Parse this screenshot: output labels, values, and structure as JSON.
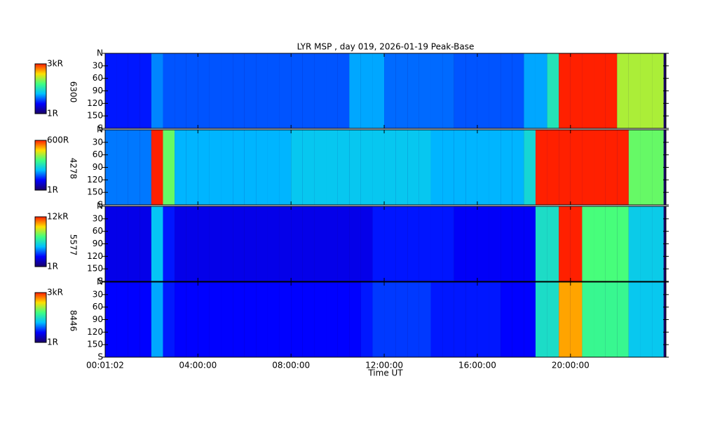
{
  "chart_data": [
    {
      "type": "heatmap",
      "title": "LYR MSP , day 019, 2026-01-19 Peak-Base",
      "channel": "6300",
      "clim": [
        1,
        3000
      ],
      "clim_labels": [
        "1R",
        "3kR"
      ],
      "log_scale": true,
      "xlim": [
        0.017,
        24.1
      ],
      "xticks": [
        {
          "value": 0.017,
          "label": "00:01:02"
        },
        {
          "value": 4,
          "label": "04:00:00"
        },
        {
          "value": 8,
          "label": "08:00:00"
        },
        {
          "value": 12,
          "label": "12:00:00"
        },
        {
          "value": 16,
          "label": "16:00:00"
        },
        {
          "value": 20,
          "label": "20:00:00"
        }
      ],
      "ylim": [
        0,
        180
      ],
      "yticks": [
        {
          "value": 0,
          "label": "N"
        },
        30,
        60,
        90,
        120,
        150,
        {
          "value": 180,
          "label": "S"
        }
      ],
      "x": [
        0.25,
        0.75,
        1.25,
        1.75,
        2.25,
        2.75,
        3.25,
        3.75,
        4.25,
        4.75,
        5.25,
        5.75,
        6.25,
        6.75,
        7.25,
        7.75,
        8.25,
        8.75,
        9.25,
        9.75,
        10.25,
        10.75,
        11.25,
        11.75,
        12.25,
        12.75,
        13.25,
        13.75,
        14.25,
        14.75,
        15.25,
        15.75,
        16.25,
        16.75,
        17.25,
        17.75,
        18.25,
        18.75,
        19.25,
        19.75,
        20.25,
        20.75,
        21.25,
        21.75,
        22.25,
        22.75,
        23.25,
        23.75
      ],
      "values": [
        6,
        6,
        6,
        6,
        15,
        10,
        10,
        10,
        10,
        10,
        10,
        10,
        10,
        10,
        10,
        10,
        10,
        10,
        10,
        10,
        10,
        20,
        20,
        20,
        12,
        12,
        12,
        12,
        12,
        12,
        10,
        10,
        10,
        10,
        10,
        10,
        20,
        20,
        60,
        3000,
        3000,
        3000,
        3000,
        3000,
        300,
        300,
        300,
        300
      ]
    },
    {
      "type": "heatmap",
      "channel": "4278",
      "clim": [
        1,
        600
      ],
      "clim_labels": [
        "1R",
        "600R"
      ],
      "log_scale": true,
      "xlim": [
        0.017,
        24.1
      ],
      "xticks": [
        {
          "value": 0.017,
          "label": "00:01:02"
        },
        {
          "value": 4,
          "label": "04:00:00"
        },
        {
          "value": 8,
          "label": "08:00:00"
        },
        {
          "value": 12,
          "label": "12:00:00"
        },
        {
          "value": 16,
          "label": "16:00:00"
        },
        {
          "value": 20,
          "label": "20:00:00"
        }
      ],
      "ylim": [
        0,
        180
      ],
      "yticks": [
        {
          "value": 0,
          "label": "N"
        },
        30,
        60,
        90,
        120,
        150,
        {
          "value": 180,
          "label": "S"
        }
      ],
      "x": [
        0.25,
        0.75,
        1.25,
        1.75,
        2.25,
        2.75,
        3.25,
        3.75,
        4.25,
        4.75,
        5.25,
        5.75,
        6.25,
        6.75,
        7.25,
        7.75,
        8.25,
        8.75,
        9.25,
        9.75,
        10.25,
        10.75,
        11.25,
        11.75,
        12.25,
        12.75,
        13.25,
        13.75,
        14.25,
        14.75,
        15.25,
        15.75,
        16.25,
        16.75,
        17.25,
        17.75,
        18.25,
        18.75,
        19.25,
        19.75,
        20.25,
        20.75,
        21.25,
        21.75,
        22.25,
        22.75,
        23.25,
        23.75
      ],
      "values": [
        8,
        8,
        8,
        8,
        600,
        60,
        12,
        12,
        12,
        12,
        12,
        12,
        12,
        12,
        12,
        12,
        15,
        15,
        15,
        15,
        15,
        15,
        15,
        15,
        15,
        15,
        15,
        15,
        12,
        12,
        12,
        12,
        12,
        12,
        12,
        12,
        20,
        600,
        600,
        600,
        600,
        600,
        600,
        600,
        600,
        60,
        60,
        60
      ]
    },
    {
      "type": "heatmap",
      "channel": "5577",
      "clim": [
        1,
        12000
      ],
      "clim_labels": [
        "1R",
        "12kR"
      ],
      "log_scale": true,
      "xlim": [
        0.017,
        24.1
      ],
      "xticks": [
        {
          "value": 0.017,
          "label": "00:01:02"
        },
        {
          "value": 4,
          "label": "04:00:00"
        },
        {
          "value": 8,
          "label": "08:00:00"
        },
        {
          "value": 12,
          "label": "12:00:00"
        },
        {
          "value": 16,
          "label": "16:00:00"
        },
        {
          "value": 20,
          "label": "20:00:00"
        }
      ],
      "ylim": [
        0,
        180
      ],
      "yticks": [
        {
          "value": 0,
          "label": "N"
        },
        30,
        60,
        90,
        120,
        150,
        {
          "value": 180,
          "label": "S"
        }
      ],
      "x": [
        0.25,
        0.75,
        1.25,
        1.75,
        2.25,
        2.75,
        3.25,
        3.75,
        4.25,
        4.75,
        5.25,
        5.75,
        6.25,
        6.75,
        7.25,
        7.75,
        8.25,
        8.75,
        9.25,
        9.75,
        10.25,
        10.75,
        11.25,
        11.75,
        12.25,
        12.75,
        13.25,
        13.75,
        14.25,
        14.75,
        15.25,
        15.75,
        16.25,
        16.75,
        17.25,
        17.75,
        18.25,
        18.75,
        19.25,
        19.75,
        20.25,
        20.75,
        21.25,
        21.75,
        22.25,
        22.75,
        23.25,
        23.75
      ],
      "values": [
        5,
        5,
        5,
        5,
        50,
        8,
        5,
        5,
        5,
        5,
        5,
        5,
        5,
        5,
        5,
        5,
        5,
        5,
        5,
        5,
        5,
        5,
        5,
        8,
        8,
        8,
        8,
        8,
        8,
        8,
        6,
        6,
        6,
        6,
        6,
        6,
        6,
        100,
        100,
        12000,
        12000,
        300,
        300,
        300,
        300,
        60,
        60,
        60
      ]
    },
    {
      "type": "heatmap",
      "channel": "8446",
      "clim": [
        1,
        3000
      ],
      "clim_labels": [
        "1R",
        "3kR"
      ],
      "log_scale": true,
      "xlim": [
        0.017,
        24.1
      ],
      "xticks": [
        {
          "value": 0.017,
          "label": "00:01:02"
        },
        {
          "value": 4,
          "label": "04:00:00"
        },
        {
          "value": 8,
          "label": "08:00:00"
        },
        {
          "value": 12,
          "label": "12:00:00"
        },
        {
          "value": 16,
          "label": "16:00:00"
        },
        {
          "value": 20,
          "label": "20:00:00"
        }
      ],
      "ylim": [
        0,
        180
      ],
      "yticks": [
        {
          "value": 0,
          "label": "N"
        },
        30,
        60,
        90,
        120,
        150,
        {
          "value": 180,
          "label": "S"
        }
      ],
      "xlabel": "Time UT",
      "x": [
        0.25,
        0.75,
        1.25,
        1.75,
        2.25,
        2.75,
        3.25,
        3.75,
        4.25,
        4.75,
        5.25,
        5.75,
        6.25,
        6.75,
        7.25,
        7.75,
        8.25,
        8.75,
        9.25,
        9.75,
        10.25,
        10.75,
        11.25,
        11.75,
        12.25,
        12.75,
        13.25,
        13.75,
        14.25,
        14.75,
        15.25,
        15.75,
        16.25,
        16.75,
        17.25,
        17.75,
        18.25,
        18.75,
        19.25,
        19.75,
        20.25,
        20.75,
        21.25,
        21.75,
        22.25,
        22.75,
        23.25,
        23.75
      ],
      "values": [
        5,
        5,
        5,
        5,
        20,
        6,
        5,
        5,
        5,
        5,
        5,
        5,
        5,
        5,
        5,
        5,
        5,
        5,
        5,
        5,
        5,
        5,
        6,
        8,
        8,
        8,
        8,
        8,
        6,
        6,
        6,
        6,
        6,
        6,
        5,
        5,
        5,
        50,
        50,
        1000,
        1000,
        100,
        100,
        100,
        100,
        30,
        30,
        30
      ]
    }
  ]
}
